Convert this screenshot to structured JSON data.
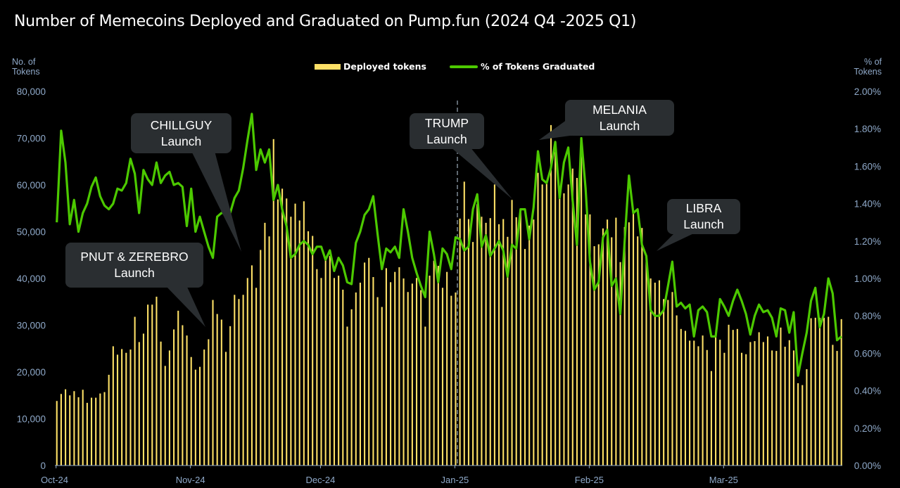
{
  "chart_data": {
    "type": "bar+line",
    "title": "Number of Memecoins Deployed and Graduated on Pump.fun (2024 Q4 -2025 Q1)",
    "ylabel_left": [
      "No. of",
      "Tokens"
    ],
    "ylabel_right": [
      "% of",
      "Tokens"
    ],
    "ylim_left": [
      0,
      80000
    ],
    "ylim_right": [
      0,
      2.0
    ],
    "y_ticks_left": [
      "0",
      "10,000",
      "20,000",
      "30,000",
      "40,000",
      "50,000",
      "60,000",
      "70,000",
      "80,000"
    ],
    "y_ticks_right": [
      "0.00%",
      "0.20%",
      "0.40%",
      "0.60%",
      "0.80%",
      "1.00%",
      "1.20%",
      "1.40%",
      "1.60%",
      "1.80%",
      "2.00%"
    ],
    "x_ticks": [
      "Oct-24",
      "Nov-24",
      "Dec-24",
      "Jan-25",
      "Feb-25",
      "Mar-25"
    ],
    "grid": false,
    "legend_position": "top-center",
    "series": [
      {
        "name": "Deployed tokens",
        "type": "bar",
        "axis": "left",
        "color": "#fde066",
        "values": [
          13800,
          15300,
          16300,
          15000,
          15900,
          14600,
          16200,
          13400,
          14500,
          14500,
          15400,
          15700,
          19400,
          25500,
          23700,
          24900,
          24100,
          24800,
          31800,
          26400,
          28200,
          34400,
          34400,
          36100,
          26500,
          21300,
          24600,
          29100,
          33100,
          30000,
          27800,
          23200,
          20500,
          21100,
          24800,
          27000,
          35400,
          32400,
          31200,
          24300,
          29800,
          36500,
          35600,
          36500,
          40100,
          42800,
          38000,
          46100,
          51900,
          49000,
          69800,
          56900,
          59200,
          57100,
          53200,
          56000,
          52400,
          56500,
          50100,
          49100,
          42000,
          40100,
          44500,
          44800,
          40100,
          40600,
          37600,
          29700,
          33400,
          37000,
          39100,
          43400,
          44400,
          40300,
          36000,
          33900,
          42200,
          39200,
          41400,
          42400,
          40000,
          37100,
          38900,
          40100,
          37500,
          29700,
          40600,
          43800,
          42700,
          38000,
          41400,
          36300,
          37000,
          52800,
          60700,
          52700,
          47800,
          55900,
          53200,
          51900,
          52900,
          60100,
          51600,
          52700,
          48900,
          56800,
          53100,
          54900,
          46300,
          51300,
          52600,
          62600,
          60100,
          60200,
          72800,
          67100,
          57200,
          58200,
          60100,
          63500,
          61500,
          70200,
          53700,
          53700,
          46900,
          47300,
          50700,
          52600,
          48800,
          53000,
          43500,
          51000,
          52000,
          53800,
          49000,
          50800,
          44800,
          40000,
          39100,
          39600,
          35600,
          35400,
          37100,
          32100,
          29200,
          28800,
          26700,
          26700,
          25500,
          27800,
          24700,
          20200,
          27400,
          26900,
          24100,
          30100,
          29000,
          29200,
          24100,
          23800,
          26400,
          26600,
          28500,
          26400,
          27600,
          24600,
          24500,
          29500,
          25400,
          26800,
          24600,
          17600,
          17200,
          20600,
          31500,
          31600,
          31600,
          31600,
          31800,
          25800,
          24500,
          31300
        ]
      },
      {
        "name": "% of Tokens Graduated",
        "type": "line",
        "axis": "right",
        "color": "#4cc900",
        "values": [
          1.3,
          1.79,
          1.62,
          1.29,
          1.42,
          1.25,
          1.35,
          1.4,
          1.49,
          1.54,
          1.44,
          1.39,
          1.37,
          1.4,
          1.48,
          1.47,
          1.51,
          1.64,
          1.56,
          1.35,
          1.58,
          1.53,
          1.5,
          1.62,
          1.51,
          1.55,
          1.57,
          1.5,
          1.51,
          1.49,
          1.28,
          1.48,
          1.25,
          1.33,
          1.25,
          1.17,
          1.11,
          1.33,
          1.35,
          1.35,
          1.35,
          1.43,
          1.47,
          1.59,
          1.74,
          1.88,
          1.58,
          1.69,
          1.62,
          1.69,
          1.42,
          1.5,
          1.37,
          1.28,
          1.11,
          1.13,
          1.18,
          1.2,
          1.18,
          1.13,
          1.17,
          1.17,
          1.1,
          1.15,
          1.04,
          1.11,
          1.07,
          0.98,
          0.97,
          1.19,
          1.25,
          1.34,
          1.37,
          1.44,
          1.24,
          1.05,
          1.16,
          1.14,
          1.17,
          1.11,
          1.37,
          1.25,
          1.11,
          1.03,
          0.96,
          0.9,
          1.25,
          1.13,
          0.98,
          1.16,
          1.13,
          1.05,
          1.22,
          1.21,
          1.15,
          1.17,
          1.37,
          1.45,
          1.17,
          1.23,
          1.12,
          1.16,
          1.2,
          1.15,
          1.01,
          1.18,
          1.16,
          1.37,
          1.37,
          1.21,
          1.38,
          1.68,
          1.53,
          1.51,
          1.59,
          1.73,
          1.43,
          1.62,
          1.7,
          1.42,
          1.18,
          1.75,
          1.48,
          1.09,
          0.94,
          0.98,
          1.22,
          1.26,
          0.96,
          1.0,
          0.81,
          1.2,
          1.55,
          1.35,
          1.37,
          1.18,
          1.12,
          0.83,
          0.8,
          0.8,
          0.83,
          0.96,
          1.09,
          0.85,
          0.87,
          0.84,
          0.86,
          0.69,
          0.83,
          0.85,
          0.82,
          0.69,
          0.69,
          0.89,
          0.85,
          0.8,
          0.88,
          0.94,
          0.88,
          0.81,
          0.7,
          0.8,
          0.86,
          0.82,
          0.83,
          0.79,
          0.69,
          0.84,
          0.83,
          0.71,
          0.82,
          0.48,
          0.6,
          0.71,
          0.88,
          0.95,
          0.74,
          0.81,
          1.0,
          0.92,
          0.67,
          0.69
        ]
      }
    ],
    "annotations": [
      {
        "line1": "PNUT & ZEREBRO",
        "line2": "Launch"
      },
      {
        "line1": "CHILLGUY",
        "line2": "Launch"
      },
      {
        "line1": "TRUMP",
        "line2": "Launch"
      },
      {
        "line1": "MELANIA",
        "line2": "Launch"
      },
      {
        "line1": "LIBRA",
        "line2": "Launch"
      }
    ]
  },
  "colors": {
    "axis_text": "#8fa9c9",
    "callout_bg": "#2a2e31",
    "background": "#000000"
  }
}
